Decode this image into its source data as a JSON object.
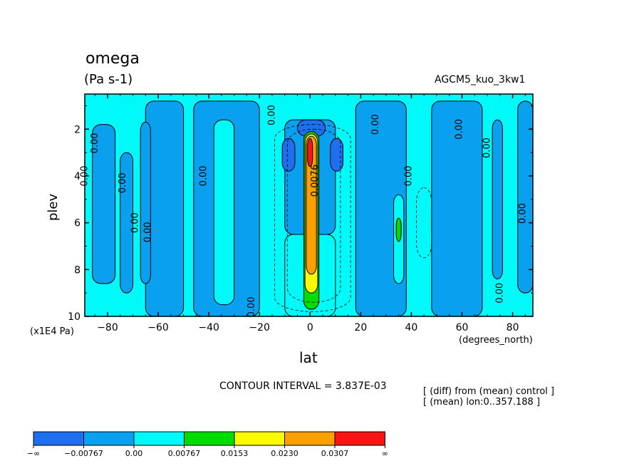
{
  "chart_data": {
    "type": "heatmap",
    "title": "omega",
    "units": "(Pa s-1)",
    "run_label": "AGCM5_kuo_3kw1",
    "xlabel": "lat",
    "ylabel": "plev",
    "x_unit": "(degrees_north)",
    "y_unit": "(x1E4 Pa)",
    "x_ticks": [
      -80,
      -60,
      -40,
      -20,
      0,
      20,
      40,
      60,
      80
    ],
    "x_tick_labels": [
      "−80",
      "−60",
      "−40",
      "−20",
      "0",
      "20",
      "40",
      "60",
      "80"
    ],
    "xlim": [
      -89,
      88
    ],
    "y_ticks": [
      2,
      4,
      6,
      8,
      10
    ],
    "y_tick_labels": [
      "2",
      "4",
      "6",
      "8",
      "10"
    ],
    "ylim": [
      0.5,
      10
    ],
    "y_inverted": true,
    "contour_interval": "CONTOUR INTERVAL = 3.837E-03",
    "notes": [
      "[ (diff) from (mean) control ]",
      "[ (mean) lon:0..357.188 ]"
    ],
    "contour_labels": [
      "0.00",
      "0.0076"
    ],
    "colorbar": {
      "labels": [
        "−∞",
        "−0.00767",
        "0.00",
        "0.00767",
        "0.0153",
        "0.0230",
        "0.0307",
        "∞"
      ],
      "colors": [
        "#1e6ef0",
        "#0aa0f0",
        "#00fafa",
        "#00dc00",
        "#fafa00",
        "#faa000",
        "#fa1414"
      ]
    },
    "regions": [
      {
        "x0": -86,
        "x1": -77,
        "y0": 1.8,
        "y1": 8.6,
        "level": 1
      },
      {
        "x0": -75,
        "x1": -70,
        "y0": 3.0,
        "y1": 9.0,
        "level": 1
      },
      {
        "x0": -65,
        "x1": -50,
        "y0": 0.8,
        "y1": 10.0,
        "level": 1
      },
      {
        "x0": -67,
        "x1": -63,
        "y0": 1.7,
        "y1": 8.6,
        "level": 1
      },
      {
        "x0": -46,
        "x1": -20,
        "y0": 0.8,
        "y1": 10.0,
        "level": 1
      },
      {
        "x0": -38,
        "x1": -30,
        "y0": 1.6,
        "y1": 9.5,
        "level": 2
      },
      {
        "x0": -10,
        "x1": 10,
        "y0": 1.6,
        "y1": 6.5,
        "level": 1
      },
      {
        "x0": -10,
        "x1": 10,
        "y0": 6.5,
        "y1": 10.0,
        "level": 2
      },
      {
        "x0": -5,
        "x1": 6,
        "y0": 1.6,
        "y1": 2.3,
        "level": 0
      },
      {
        "x0": -11,
        "x1": -6,
        "y0": 2.4,
        "y1": 3.8,
        "level": 0
      },
      {
        "x0": 8,
        "x1": 13,
        "y0": 2.4,
        "y1": 3.8,
        "level": 0
      },
      {
        "x0": 18,
        "x1": 38,
        "y0": 0.8,
        "y1": 10.0,
        "level": 1
      },
      {
        "x0": 33,
        "x1": 37,
        "y0": 4.8,
        "y1": 8.6,
        "level": 2
      },
      {
        "x0": 48,
        "x1": 68,
        "y0": 0.8,
        "y1": 10.0,
        "level": 1
      },
      {
        "x0": 72,
        "x1": 76,
        "y0": 1.6,
        "y1": 8.4,
        "level": 1
      },
      {
        "x0": 82,
        "x1": 88,
        "y0": 0.8,
        "y1": 9.0,
        "level": 1
      },
      {
        "x0": 34,
        "x1": 36,
        "y0": 5.8,
        "y1": 6.8,
        "level": 3
      },
      {
        "x0": -2.5,
        "x1": 3.5,
        "y0": 2.1,
        "y1": 9.7,
        "level": 3
      },
      {
        "x0": -2,
        "x1": 3,
        "y0": 2.2,
        "y1": 9.0,
        "level": 4
      },
      {
        "x0": -1.5,
        "x1": 2.5,
        "y0": 2.3,
        "y1": 8.2,
        "level": 5
      },
      {
        "x0": -1,
        "x1": 1,
        "y0": 2.4,
        "y1": 3.6,
        "level": 6
      }
    ]
  }
}
